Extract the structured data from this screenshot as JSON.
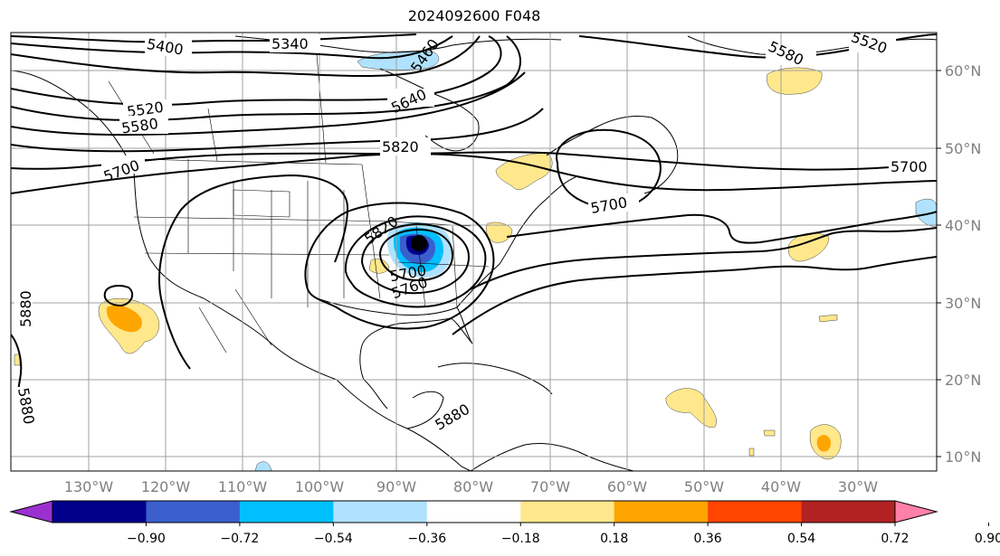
{
  "title": "2024092600 F048",
  "map": {
    "lat_labels": [
      "60°N",
      "50°N",
      "40°N",
      "30°N",
      "20°N",
      "10°N"
    ],
    "lon_labels": [
      "130°W",
      "120°W",
      "110°W",
      "100°W",
      "90°W",
      "80°W",
      "70°W",
      "60°W",
      "50°W",
      "40°W",
      "30°W"
    ],
    "contour_labels": [
      "5400",
      "5340",
      "5460",
      "5640",
      "5520",
      "5580",
      "5700",
      "5820",
      "5820",
      "5700",
      "5760",
      "5580",
      "5520",
      "5700",
      "5880",
      "5880",
      "5880",
      "5760"
    ],
    "low_center": "L"
  },
  "colorbar": {
    "ticks": [
      "−0.90",
      "−0.72",
      "−0.54",
      "−0.36",
      "−0.18",
      "0.18",
      "0.36",
      "0.54",
      "0.72",
      "0.90"
    ],
    "colors": [
      "#9b30d0",
      "#00008b",
      "#3a5fcd",
      "#00bfff",
      "#b0e2ff",
      "#ffffff",
      "#ffe88c",
      "#ffa500",
      "#ff4500",
      "#b22222",
      "#ff80a8"
    ]
  }
}
